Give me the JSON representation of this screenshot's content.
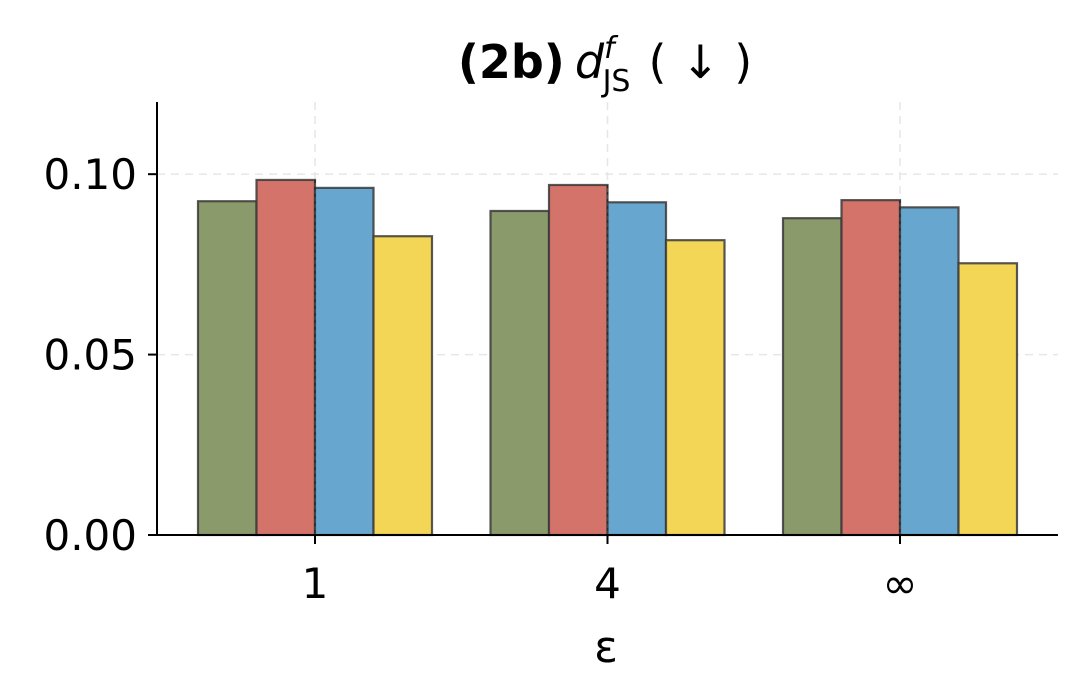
{
  "chart_data": {
    "type": "bar",
    "title": {
      "prefix": "(2b)",
      "symbol": "d",
      "superscript": "f",
      "subscript": "JS",
      "suffix": "( ↓ )"
    },
    "xlabel": "ε",
    "ylabel": "",
    "categories": [
      "1",
      "4",
      "∞"
    ],
    "ylim": [
      0,
      0.12
    ],
    "yticks": [
      "0.00",
      "0.05",
      "0.10"
    ],
    "grid": true,
    "series": [
      {
        "color": "#8a9a6b",
        "values": [
          0.0925,
          0.0898,
          0.0878
        ]
      },
      {
        "color": "#d4736a",
        "values": [
          0.0984,
          0.097,
          0.0928
        ]
      },
      {
        "color": "#67a7cf",
        "values": [
          0.0962,
          0.0922,
          0.0908
        ]
      },
      {
        "color": "#f4d657",
        "values": [
          0.0828,
          0.0817,
          0.0753
        ]
      }
    ]
  }
}
